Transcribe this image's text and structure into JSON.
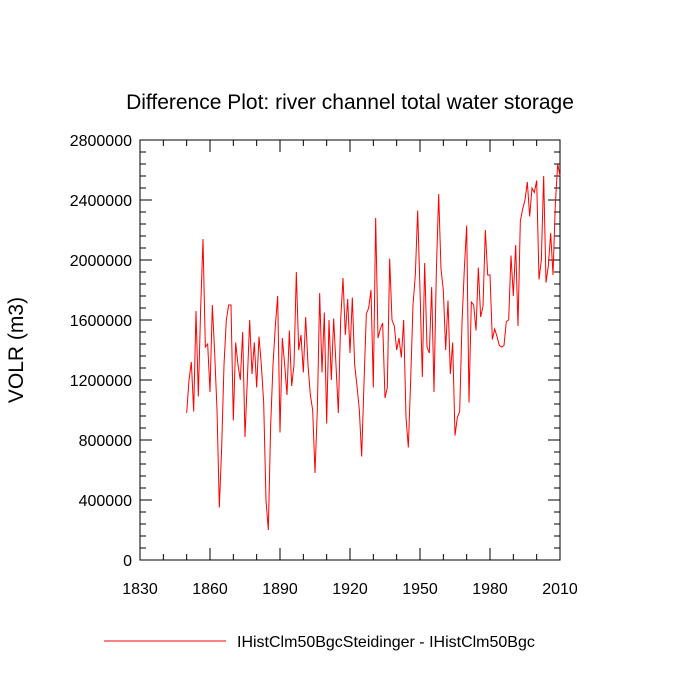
{
  "chart_data": {
    "type": "line",
    "title": "Difference Plot: river channel total water storage",
    "ylabel": "VOLR  (m3)",
    "xlabel": "",
    "xlim": [
      1830,
      2010
    ],
    "ylim": [
      0,
      2800000
    ],
    "xticks": [
      "1830",
      "1860",
      "1890",
      "1920",
      "1950",
      "1980",
      "2010"
    ],
    "yticks": [
      "0",
      "400000",
      "800000",
      "1200000",
      "1600000",
      "2000000",
      "2400000",
      "2800000"
    ],
    "grid": false,
    "legend_position": "bottom",
    "series": [
      {
        "name": "IHistClm50BgcSteidinger - IHistClm50Bgc",
        "color": "#ff0000",
        "x": [
          1850,
          1851,
          1852,
          1853,
          1854,
          1855,
          1856,
          1857,
          1858,
          1859,
          1860,
          1861,
          1862,
          1863,
          1864,
          1865,
          1866,
          1867,
          1868,
          1869,
          1870,
          1871,
          1872,
          1873,
          1874,
          1875,
          1876,
          1877,
          1878,
          1879,
          1880,
          1881,
          1882,
          1883,
          1884,
          1885,
          1886,
          1887,
          1888,
          1889,
          1890,
          1891,
          1892,
          1893,
          1894,
          1895,
          1896,
          1897,
          1898,
          1899,
          1900,
          1901,
          1902,
          1903,
          1904,
          1905,
          1906,
          1907,
          1908,
          1909,
          1910,
          1911,
          1912,
          1913,
          1914,
          1915,
          1916,
          1917,
          1918,
          1919,
          1920,
          1921,
          1922,
          1923,
          1924,
          1925,
          1926,
          1927,
          1928,
          1929,
          1930,
          1931,
          1932,
          1933,
          1934,
          1935,
          1936,
          1937,
          1938,
          1939,
          1940,
          1941,
          1942,
          1943,
          1944,
          1945,
          1946,
          1947,
          1948,
          1949,
          1950,
          1951,
          1952,
          1953,
          1954,
          1955,
          1956,
          1957,
          1958,
          1959,
          1960,
          1961,
          1962,
          1963,
          1964,
          1965,
          1966,
          1967,
          1968,
          1969,
          1970,
          1971,
          1972,
          1973,
          1974,
          1975,
          1976,
          1977,
          1978,
          1979,
          1980,
          1981,
          1982,
          1983,
          1984,
          1985,
          1986,
          1987,
          1988,
          1989,
          1990,
          1991,
          1992,
          1993,
          1994,
          1995,
          1996,
          1997,
          1998,
          1999,
          2000,
          2001,
          2002,
          2003,
          2004,
          2005,
          2006,
          2007,
          2008,
          2009,
          2010
        ],
        "values": [
          980000,
          1200000,
          1320000,
          990000,
          1660000,
          1090000,
          1680000,
          2140000,
          1420000,
          1440000,
          1120000,
          1700000,
          1380000,
          1000000,
          350000,
          750000,
          1300000,
          1600000,
          1700000,
          1700000,
          930000,
          1450000,
          1300000,
          1200000,
          1520000,
          820000,
          1200000,
          1600000,
          1240000,
          1450000,
          1150000,
          1490000,
          1300000,
          1050000,
          400000,
          200000,
          900000,
          1300000,
          1560000,
          1760000,
          850000,
          1480000,
          1300000,
          1100000,
          1530000,
          1160000,
          1300000,
          1920000,
          1400000,
          1500000,
          1250000,
          1620000,
          1300000,
          1100000,
          1000000,
          580000,
          1000000,
          1780000,
          1250000,
          1650000,
          910000,
          1600000,
          1200000,
          1610000,
          1300000,
          980000,
          1600000,
          1880000,
          1500000,
          1740000,
          1380000,
          1750000,
          1300000,
          1160000,
          1000000,
          690000,
          1180000,
          1640000,
          1680000,
          1800000,
          1150000,
          2280000,
          1480000,
          1540000,
          1580000,
          1080000,
          1150000,
          2010000,
          1600000,
          1560000,
          1400000,
          1480000,
          1350000,
          1600000,
          950000,
          750000,
          1200000,
          1700000,
          1900000,
          2330000,
          1800000,
          1220000,
          1980000,
          1420000,
          1380000,
          1820000,
          1120000,
          1920000,
          2440000,
          1940000,
          1800000,
          1400000,
          1730000,
          1240000,
          1450000,
          830000,
          950000,
          990000,
          1580000,
          1940000,
          2230000,
          1050000,
          1720000,
          1700000,
          1530000,
          1950000,
          1620000,
          1690000,
          2200000,
          1900000,
          1900000,
          1470000,
          1540000,
          1490000,
          1430000,
          1420000,
          1430000,
          1590000,
          1600000,
          2030000,
          1760000,
          2100000,
          1560000,
          2260000,
          2340000,
          2400000,
          2520000,
          2290000,
          2480000,
          2450000,
          2530000,
          1870000,
          2000000,
          2560000,
          1850000,
          1960000,
          2180000,
          1900000,
          2370000,
          2640000,
          2560000
        ]
      }
    ]
  }
}
